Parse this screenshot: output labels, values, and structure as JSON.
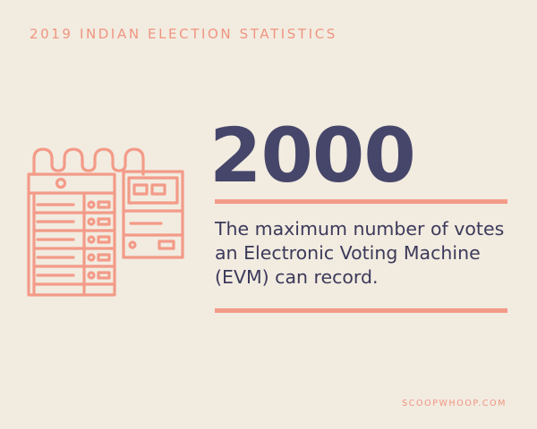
{
  "header": {
    "title": "2019 INDIAN ELECTION STATISTICS"
  },
  "illustration": {
    "icon": "evm-machine-icon",
    "stroke_color": "#f39b88"
  },
  "stat": {
    "value": "2000",
    "description_lines": [
      "The maximum number of votes",
      "an Electronic Voting Machine",
      "(EVM) can record."
    ]
  },
  "footer": {
    "brand": "SCOOPWHOOP.COM"
  },
  "colors": {
    "background": "#f2ebe0",
    "accent": "#f39b88",
    "number": "#46466a"
  }
}
